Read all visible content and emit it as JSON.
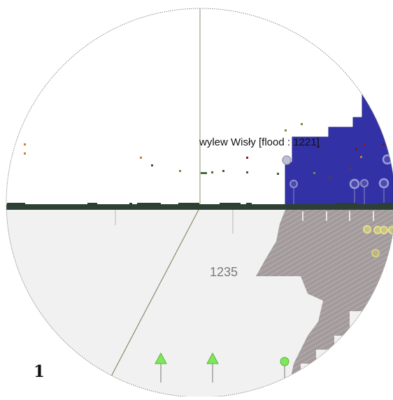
{
  "view": {
    "event_label": "wylew Wisły [flood : 1221]",
    "year_label": "1235",
    "page_number": "1"
  },
  "colors": {
    "background": "#ffffff",
    "lower_half": "#f1f1f1",
    "timeline_band": "#2e3f33",
    "flood_area": "#3232a6",
    "flood_outline": "#2a2a8c",
    "striped_area": "#a39b9b",
    "marker_green": "#7de85a",
    "axis_line": "#8a8a6e",
    "label_text": "#7a7a7a"
  },
  "icons": {
    "marker_triangle": "triangle-marker-icon",
    "marker_circle": "circle-marker-icon",
    "ring_marker": "ring-marker-icon"
  }
}
